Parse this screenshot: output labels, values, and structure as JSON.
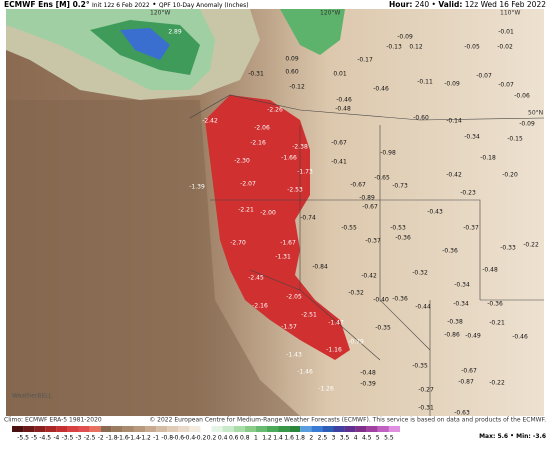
{
  "header": {
    "model": "ECMWF Ens [M] 0.2°",
    "init": "Init 12z 6 Feb 2022",
    "product": "QPF 10-Day Anomaly (Inches)",
    "hour_label": "Hour:",
    "hour": "240",
    "valid_label": "Valid:",
    "valid": "12z Wed 16 Feb 2022"
  },
  "map": {
    "grid_labels": [
      "120°W",
      "110°W",
      "50°N"
    ],
    "values": [
      "2.89",
      "0.09",
      "-0.09",
      "-0.13",
      "0.12",
      "-0.31",
      "0.60",
      "0.01",
      "-0.17",
      "-0.12",
      "-0.46",
      "-0.46",
      "-0.48",
      "-0.11",
      "-0.09",
      "-0.07",
      "-0.01",
      "-0.05",
      "-0.02",
      "-0.07",
      "-0.06",
      "-0.09",
      "-0.14",
      "-0.60",
      "-0.34",
      "-0.15",
      "-2.26",
      "-2.42",
      "-2.06",
      "-2.16",
      "-2.38",
      "-2.30",
      "-1.66",
      "-1.73",
      "-2.07",
      "-1.39",
      "-2.53",
      "-2.21",
      "-2.00",
      "-1.67",
      "-2.70",
      "-1.31",
      "-2.45",
      "-2.05",
      "-2.16",
      "-2.51",
      "-1.47",
      "-1.57",
      "-1.43",
      "-1.16",
      "-0.79",
      "-1.46",
      "-1.26",
      "-0.67",
      "-0.98",
      "-0.41",
      "-0.18",
      "-0.42",
      "-0.20",
      "-0.65",
      "-0.73",
      "-0.67",
      "-0.89",
      "-0.67",
      "-0.23",
      "-0.74",
      "-0.43",
      "-0.55",
      "-0.53",
      "-0.37",
      "-0.36",
      "-0.37",
      "-0.33",
      "-0.22",
      "-0.36",
      "-0.84",
      "-0.42",
      "-0.32",
      "-0.48",
      "-0.34",
      "-0.32",
      "-0.40",
      "-0.36",
      "-0.44",
      "-0.34",
      "-0.36",
      "-0.38",
      "-0.21",
      "-0.46",
      "-0.35",
      "-0.86",
      "-0.49",
      "-0.48",
      "-0.39",
      "-0.35",
      "-0.67",
      "-0.87",
      "-0.22",
      "-0.27",
      "-0.31",
      "-0.63"
    ]
  },
  "legend": {
    "labels": [
      "-5.5",
      "-5",
      "-4.5",
      "-4",
      "-3.5",
      "-3",
      "-2.5",
      "-2",
      "-1.8",
      "-1.6",
      "-1.4",
      "-1.2",
      "-1",
      "-0.8",
      "-0.6",
      "-0.4",
      "-0.2",
      "0.2",
      "0.4",
      "0.6",
      "0.8",
      "1",
      "1.2",
      "1.4",
      "1.6",
      "1.8",
      "2",
      "2.5",
      "3",
      "3.5",
      "4",
      "4.5",
      "5",
      "5.5"
    ]
  },
  "footer": {
    "climo": "Climo: ECMWF ERA-5 1981-2020",
    "copyright": "© 2022 European Centre for Medium-Range Weather Forecasts (ECMWF). This service is based on data and products of the ECMWF.",
    "max": "Max: 5.6",
    "min": "Min: -3.6",
    "logo": "WeatherBELL"
  }
}
